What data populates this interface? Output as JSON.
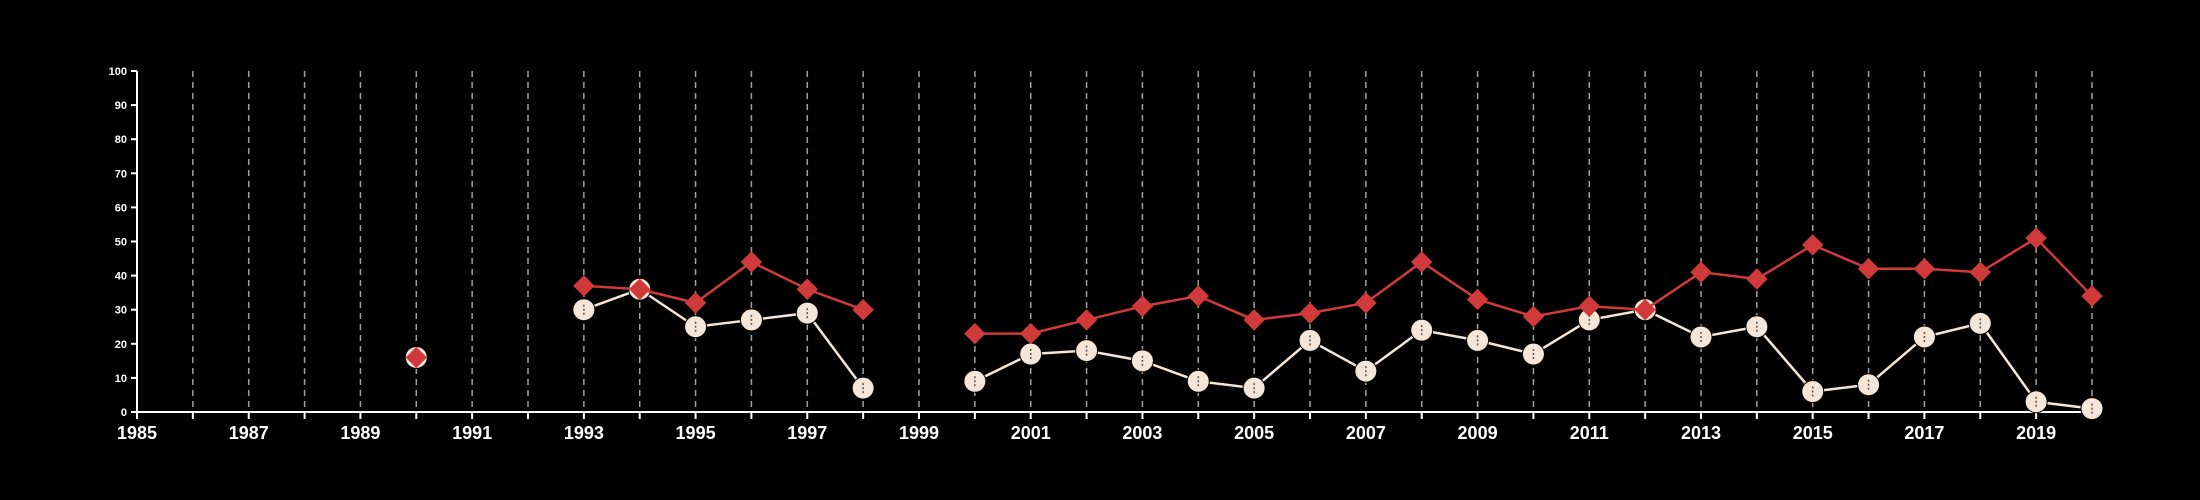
{
  "chart_data": {
    "type": "line",
    "title": "",
    "xlabel": "",
    "ylabel": "",
    "xlim": [
      1985,
      2020
    ],
    "ylim": [
      0,
      100
    ],
    "y_ticks": [
      "0",
      "10",
      "20",
      "30",
      "40",
      "50",
      "60",
      "70",
      "80",
      "90",
      "100"
    ],
    "x_ticks": [
      "1985",
      "1987",
      "1989",
      "1991",
      "1993",
      "1995",
      "1997",
      "1999",
      "2001",
      "2003",
      "2005",
      "2007",
      "2009",
      "2011",
      "2013",
      "2015",
      "2017",
      "2019"
    ],
    "grid": "vertical dashed at each year",
    "legend": "none",
    "colors": {
      "background": "#000000",
      "axis": "#ffffff",
      "grid": "#a0a0a0",
      "series_red": "#d03a3a",
      "series_cream": "#f5e6d8",
      "marker_center": "#555555"
    },
    "series": [
      {
        "marker": "diamond",
        "color": "#d03a3a",
        "segments": [
          [
            [
              1990,
              16
            ]
          ],
          [
            [
              1993,
              37
            ],
            [
              1994,
              36
            ],
            [
              1995,
              32
            ],
            [
              1996,
              44
            ],
            [
              1997,
              36
            ],
            [
              1998,
              30
            ]
          ],
          [
            [
              2000,
              23
            ],
            [
              2001,
              23
            ],
            [
              2002,
              27
            ],
            [
              2003,
              31
            ],
            [
              2004,
              34
            ],
            [
              2005,
              27
            ],
            [
              2006,
              29
            ],
            [
              2007,
              32
            ],
            [
              2008,
              44
            ],
            [
              2009,
              33
            ],
            [
              2010,
              28
            ],
            [
              2011,
              31
            ],
            [
              2012,
              30
            ],
            [
              2013,
              41
            ],
            [
              2014,
              39
            ],
            [
              2015,
              49
            ],
            [
              2016,
              42
            ],
            [
              2017,
              42
            ],
            [
              2018,
              41
            ],
            [
              2019,
              51
            ],
            [
              2020,
              34
            ]
          ]
        ]
      },
      {
        "marker": "circle",
        "color": "#f5e6d8",
        "segments": [
          [
            [
              1990,
              16
            ]
          ],
          [
            [
              1993,
              30
            ],
            [
              1994,
              36
            ],
            [
              1995,
              25
            ],
            [
              1996,
              27
            ],
            [
              1997,
              29
            ],
            [
              1998,
              7
            ]
          ],
          [
            [
              2000,
              9
            ],
            [
              2001,
              17
            ],
            [
              2002,
              18
            ],
            [
              2003,
              15
            ],
            [
              2004,
              9
            ],
            [
              2005,
              7
            ],
            [
              2006,
              21
            ],
            [
              2007,
              12
            ],
            [
              2008,
              24
            ],
            [
              2009,
              21
            ],
            [
              2010,
              17
            ],
            [
              2011,
              27
            ],
            [
              2012,
              30
            ],
            [
              2013,
              22
            ],
            [
              2014,
              25
            ],
            [
              2015,
              6
            ],
            [
              2016,
              8
            ],
            [
              2017,
              22
            ],
            [
              2018,
              26
            ],
            [
              2019,
              3
            ],
            [
              2020,
              1
            ]
          ]
        ]
      }
    ]
  }
}
